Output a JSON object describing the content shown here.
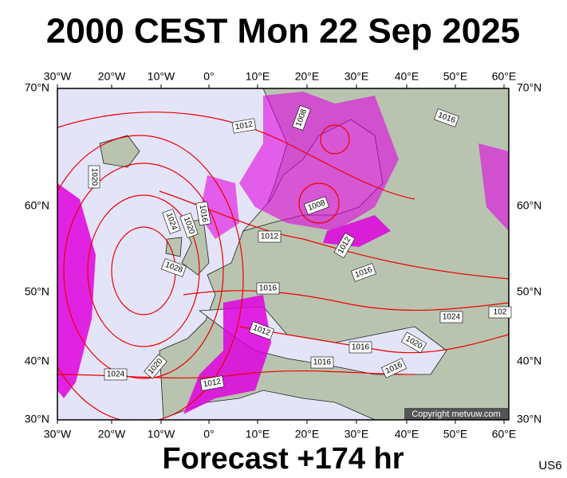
{
  "header": {
    "title": "2000 CEST Mon 22 Sep 2025"
  },
  "map": {
    "lon_labels": [
      "30°W",
      "20°W",
      "10°W",
      "0°",
      "10°E",
      "20°E",
      "30°E",
      "40°E",
      "50°E",
      "60°E"
    ],
    "lat_labels": [
      "70°N",
      "60°N",
      "50°N",
      "40°N",
      "30°N"
    ],
    "isobar_labels": [
      "1012",
      "1008",
      "1016",
      "1020",
      "1024",
      "1020",
      "1016",
      "1008",
      "1012",
      "1012",
      "1028",
      "1016",
      "1016",
      "1012",
      "1024",
      "102",
      "1016",
      "1020",
      "1016",
      "1024",
      "1020",
      "1012",
      "1016"
    ],
    "copyright": "Copyright metvuw.com"
  },
  "footer": {
    "forecast": "Forecast +174 hr",
    "code": "US6"
  }
}
